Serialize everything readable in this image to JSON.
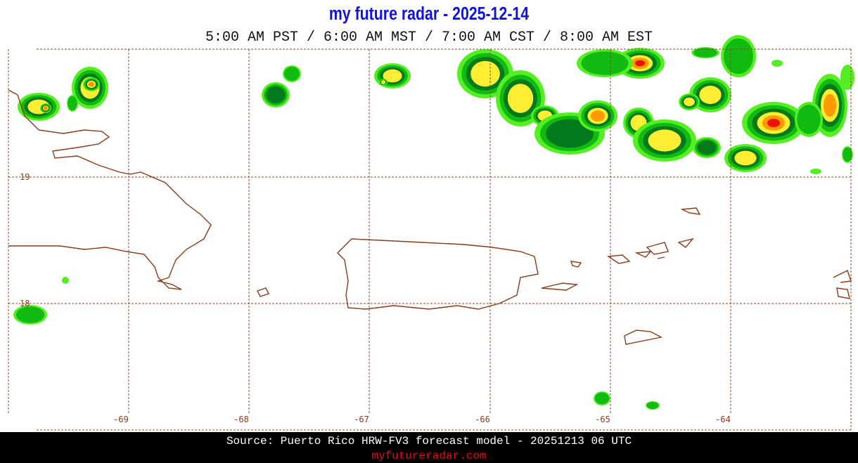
{
  "header": {
    "title": "my future radar - 2025-12-14",
    "times": "5:00 AM PST /  6:00 AM MST /  7:00 AM CST /  8:00 AM EST"
  },
  "map": {
    "lat_labels": [
      "19",
      "18"
    ],
    "lon_labels": [
      "-69",
      "-68",
      "-67",
      "-66",
      "-65",
      "-64"
    ]
  },
  "footer": {
    "source": "Source: Puerto Rico HRW-FV3 forecast model - 20251213 06 UTC",
    "site": "myfutureradar.com"
  }
}
